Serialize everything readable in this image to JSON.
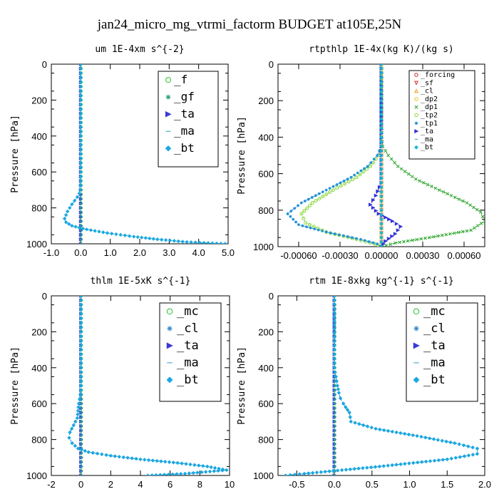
{
  "figure": {
    "title": "jan24_micro_mg_vtrmi_factorm  BUDGET at105E,25N"
  },
  "chart_data": [
    {
      "type": "line",
      "title": "um  1E-4xm s^{-2}",
      "xlabel": "",
      "ylabel": "Pressure [hPa]",
      "xlim": [
        -1.0,
        5.0
      ],
      "ylim": [
        1000,
        0
      ],
      "y_inverted": true,
      "xticks": [
        "-1.0",
        "0.0",
        "1.0",
        "2.0",
        "3.0",
        "4.0",
        "5.0"
      ],
      "xtick_values": [
        -1,
        0,
        1,
        2,
        3,
        4,
        5
      ],
      "yticks": [
        "0",
        "200",
        "400",
        "600",
        "800",
        "1000"
      ],
      "ytick_values": [
        0,
        200,
        400,
        600,
        800,
        1000
      ],
      "legend_position": "top-right",
      "legend_size": "large",
      "series": [
        {
          "name": "_f",
          "color": "#22c22c",
          "marker": "circle-open",
          "x": [
            0,
            0,
            0,
            0,
            0,
            0,
            0,
            0,
            0,
            0,
            0,
            0
          ],
          "y": [
            0,
            100,
            200,
            300,
            400,
            500,
            600,
            700,
            800,
            900,
            950,
            1000
          ]
        },
        {
          "name": "_gf",
          "color": "#1f9e6a",
          "marker": "star",
          "x": [
            0,
            0,
            0,
            0,
            0,
            0,
            0,
            0,
            0,
            0,
            0,
            0
          ],
          "y": [
            0,
            100,
            200,
            300,
            400,
            500,
            600,
            700,
            800,
            900,
            950,
            1000
          ]
        },
        {
          "name": "_ta",
          "color": "#3a3ad6",
          "marker": "triangle-right",
          "x": [
            0,
            0,
            0,
            0,
            0,
            0,
            0,
            0,
            0,
            0
          ],
          "y": [
            0,
            100,
            200,
            300,
            400,
            500,
            600,
            700,
            800,
            1000
          ]
        },
        {
          "name": "_ma",
          "color": "#2aa0c8",
          "marker": "dash",
          "x": [
            0,
            0,
            0,
            0,
            0,
            0,
            0,
            0,
            0,
            0
          ],
          "y": [
            0,
            100,
            200,
            300,
            400,
            500,
            600,
            700,
            800,
            1000
          ]
        },
        {
          "name": "_bt",
          "color": "#1aa8e0",
          "marker": "diamond",
          "x": [
            0,
            0,
            0,
            0,
            0,
            -0.02,
            -0.05,
            -0.12,
            -0.3,
            -0.45,
            -0.55,
            -0.5,
            -0.3,
            0.2,
            0.9,
            1.8,
            2.6,
            3.6,
            4.9
          ],
          "y": [
            0,
            200,
            400,
            600,
            650,
            700,
            720,
            740,
            780,
            820,
            860,
            880,
            900,
            920,
            940,
            960,
            975,
            990,
            1000
          ]
        }
      ]
    },
    {
      "type": "line",
      "title": "rtpthlp  1E-4x(kg K)/(kg s)",
      "xlabel": "",
      "ylabel": "Pressure [hPa]",
      "xlim": [
        -0.00075,
        0.00075
      ],
      "ylim": [
        1000,
        0
      ],
      "y_inverted": true,
      "xticks": [
        "-0.00060",
        "-0.00030",
        "0.00000",
        "0.00030",
        "0.00060"
      ],
      "xtick_values": [
        -0.0006,
        -0.0003,
        0.0,
        0.0003,
        0.0006
      ],
      "yticks": [
        "0",
        "200",
        "400",
        "600",
        "800",
        "1000"
      ],
      "ytick_values": [
        0,
        200,
        400,
        600,
        800,
        1000
      ],
      "legend_position": "top-right",
      "legend_size": "small",
      "series": [
        {
          "name": "_forcing",
          "color": "#d02020",
          "marker": "circle-open",
          "x": [
            0,
            0,
            0,
            0,
            0,
            0,
            0,
            0,
            0,
            0,
            0
          ],
          "y": [
            0,
            100,
            200,
            300,
            400,
            500,
            600,
            700,
            800,
            900,
            1000
          ]
        },
        {
          "name": "_sf",
          "color": "#e03030",
          "marker": "triangle-down",
          "x": [
            0,
            0,
            0,
            0,
            0,
            0,
            0,
            0,
            0,
            0,
            0
          ],
          "y": [
            0,
            100,
            200,
            300,
            400,
            500,
            600,
            700,
            800,
            900,
            1000
          ]
        },
        {
          "name": "_cl",
          "color": "#f0a020",
          "marker": "triangle-up",
          "x": [
            0,
            0,
            0,
            0,
            0,
            0,
            0,
            0,
            0,
            0,
            0
          ],
          "y": [
            0,
            100,
            200,
            300,
            400,
            500,
            600,
            700,
            800,
            900,
            1000
          ]
        },
        {
          "name": "_dp2",
          "color": "#e8c020",
          "marker": "circle-open",
          "x": [
            0,
            0,
            0,
            0,
            0,
            0,
            0,
            0,
            0,
            0,
            0
          ],
          "y": [
            0,
            100,
            200,
            300,
            400,
            500,
            600,
            700,
            800,
            900,
            1000
          ]
        },
        {
          "name": "_dp1",
          "color": "#32a832",
          "marker": "x",
          "x": [
            0,
            0,
            0,
            1e-05,
            5e-05,
            0.00012,
            0.00025,
            0.00045,
            0.00062,
            0.00072,
            0.00075,
            0.00065,
            0.00035,
            0.0001,
            0
          ],
          "y": [
            0,
            300,
            400,
            450,
            500,
            560,
            630,
            700,
            760,
            810,
            860,
            910,
            950,
            980,
            1000
          ]
        },
        {
          "name": "_tp2",
          "color": "#8ad840",
          "marker": "circle-open",
          "x": [
            0,
            0,
            0,
            -2e-05,
            -8e-05,
            -0.00018,
            -0.00035,
            -0.0005,
            -0.00058,
            -0.00055,
            -0.0004,
            -0.00018,
            -5e-05,
            0
          ],
          "y": [
            0,
            400,
            450,
            500,
            560,
            620,
            690,
            760,
            820,
            870,
            920,
            960,
            985,
            1000
          ]
        },
        {
          "name": "_tp1",
          "color": "#2090d8",
          "marker": "star",
          "x": [
            0,
            0,
            0,
            -3e-05,
            -0.0001,
            -0.00022,
            -0.0004,
            -0.00058,
            -0.00068,
            -0.0006,
            -0.0004,
            -0.00015,
            -3e-05,
            0
          ],
          "y": [
            0,
            400,
            450,
            500,
            560,
            620,
            690,
            760,
            820,
            880,
            920,
            960,
            985,
            1000
          ]
        },
        {
          "name": "_ta",
          "color": "#3030d8",
          "marker": "triangle-right",
          "x": [
            0,
            0,
            0,
            -4e-05,
            -8e-05,
            -2e-05,
            8e-05,
            0.00014,
            0.0001,
            3e-05,
            0
          ],
          "y": [
            0,
            500,
            650,
            720,
            770,
            820,
            860,
            890,
            930,
            970,
            1000
          ]
        },
        {
          "name": "_ma",
          "color": "#2aa0c8",
          "marker": "dash",
          "x": [
            0,
            0,
            0,
            0,
            0,
            0,
            0,
            0,
            0,
            0,
            0
          ],
          "y": [
            0,
            100,
            200,
            300,
            400,
            500,
            600,
            700,
            800,
            900,
            1000
          ]
        },
        {
          "name": "_bt",
          "color": "#10b8d8",
          "marker": "diamond",
          "x": [
            0,
            0,
            0,
            0,
            0,
            0,
            0,
            0,
            0,
            0,
            0
          ],
          "y": [
            0,
            100,
            200,
            300,
            400,
            500,
            600,
            700,
            800,
            900,
            1000
          ]
        }
      ]
    },
    {
      "type": "line",
      "title": "thlm  1E-5xK s^{-1}",
      "xlabel": "",
      "ylabel": "Pressure [hPa]",
      "xlim": [
        -2,
        10
      ],
      "ylim": [
        1000,
        0
      ],
      "y_inverted": true,
      "xticks": [
        "-2",
        "0",
        "2",
        "4",
        "6",
        "8",
        "10"
      ],
      "xtick_values": [
        -2,
        0,
        2,
        4,
        6,
        8,
        10
      ],
      "yticks": [
        "0",
        "200",
        "400",
        "600",
        "800",
        "1000"
      ],
      "ytick_values": [
        0,
        200,
        400,
        600,
        800,
        1000
      ],
      "legend_position": "top-right",
      "legend_size": "large",
      "series": [
        {
          "name": "_mc",
          "color": "#22c22c",
          "marker": "circle-open",
          "x": [
            0,
            0,
            0,
            0,
            0,
            0,
            0,
            0,
            0,
            0,
            0,
            0
          ],
          "y": [
            0,
            100,
            200,
            300,
            400,
            500,
            600,
            700,
            800,
            900,
            950,
            1000
          ]
        },
        {
          "name": "_cl",
          "color": "#2a7fc8",
          "marker": "star",
          "x": [
            0,
            0,
            0,
            0,
            -0.05,
            -0.15,
            -0.2,
            -0.25,
            -0.5,
            -0.75,
            -0.8,
            -0.6,
            -0.2,
            0.5,
            2,
            4,
            6.5,
            8.5,
            9.8,
            7,
            4.5
          ],
          "y": [
            0,
            200,
            400,
            500,
            550,
            600,
            640,
            680,
            720,
            760,
            790,
            820,
            850,
            870,
            890,
            910,
            930,
            950,
            970,
            990,
            1000
          ]
        },
        {
          "name": "_ta",
          "color": "#3a3ad6",
          "marker": "triangle-right",
          "x": [
            0,
            0,
            0,
            0,
            0,
            0,
            0,
            0,
            0,
            0,
            0,
            0
          ],
          "y": [
            0,
            100,
            200,
            300,
            400,
            500,
            600,
            700,
            800,
            900,
            950,
            1000
          ]
        },
        {
          "name": "_ma",
          "color": "#2aa0c8",
          "marker": "dash",
          "x": [
            0,
            0,
            0,
            0,
            0,
            0,
            0,
            0,
            0,
            0,
            0,
            0
          ],
          "y": [
            0,
            100,
            200,
            300,
            400,
            500,
            600,
            700,
            800,
            900,
            950,
            1000
          ]
        },
        {
          "name": "_bt",
          "color": "#1aa8e0",
          "marker": "diamond",
          "x": [
            0,
            0,
            0,
            0,
            -0.05,
            -0.15,
            -0.2,
            -0.25,
            -0.5,
            -0.75,
            -0.8,
            -0.6,
            -0.2,
            0.5,
            2,
            4,
            6.5,
            8.5,
            9.8,
            7,
            4.5
          ],
          "y": [
            0,
            200,
            400,
            500,
            550,
            600,
            640,
            680,
            720,
            760,
            790,
            820,
            850,
            870,
            890,
            910,
            930,
            950,
            970,
            990,
            1000
          ]
        }
      ]
    },
    {
      "type": "line",
      "title": "rtm  1E-8xkg kg^{-1} s^{-1}",
      "xlabel": "",
      "ylabel": "Pressure [hPa]",
      "xlim": [
        -0.75,
        2.0
      ],
      "ylim": [
        1000,
        0
      ],
      "y_inverted": true,
      "xticks": [
        "-0.5",
        "0.0",
        "0.5",
        "1.0",
        "1.5",
        "2.0"
      ],
      "xtick_values": [
        -0.5,
        0.0,
        0.5,
        1.0,
        1.5,
        2.0
      ],
      "yticks": [
        "0",
        "200",
        "400",
        "600",
        "800",
        "1000"
      ],
      "ytick_values": [
        0,
        200,
        400,
        600,
        800,
        1000
      ],
      "legend_position": "top-right",
      "legend_size": "large",
      "series": [
        {
          "name": "_mc",
          "color": "#22c22c",
          "marker": "circle-open",
          "x": [
            0,
            0,
            0,
            0,
            0,
            0,
            0,
            0,
            0,
            0,
            0,
            0
          ],
          "y": [
            0,
            100,
            200,
            300,
            400,
            500,
            600,
            700,
            800,
            900,
            950,
            1000
          ]
        },
        {
          "name": "_cl",
          "color": "#2a7fc8",
          "marker": "star",
          "x": [
            0,
            0,
            0,
            0.02,
            0.04,
            0.06,
            0.08,
            0.12,
            0.15,
            0.2,
            0.22,
            0.55,
            1.1,
            1.6,
            1.9,
            1.9,
            1.5,
            0.6,
            0.1,
            -0.4,
            -0.65
          ],
          "y": [
            0,
            300,
            400,
            450,
            500,
            540,
            570,
            600,
            620,
            650,
            700,
            740,
            780,
            820,
            850,
            880,
            910,
            950,
            970,
            990,
            1000
          ]
        },
        {
          "name": "_ta",
          "color": "#3a3ad6",
          "marker": "triangle-right",
          "x": [
            0,
            0,
            0,
            0,
            0,
            0,
            0,
            0,
            0,
            0,
            0,
            0
          ],
          "y": [
            0,
            100,
            200,
            300,
            400,
            500,
            600,
            700,
            800,
            900,
            950,
            1000
          ]
        },
        {
          "name": "_ma",
          "color": "#2aa0c8",
          "marker": "dash",
          "x": [
            0,
            0,
            0,
            0,
            0,
            0,
            0,
            0,
            0,
            0,
            0,
            0
          ],
          "y": [
            0,
            100,
            200,
            300,
            400,
            500,
            600,
            700,
            800,
            900,
            950,
            1000
          ]
        },
        {
          "name": "_bt",
          "color": "#1aa8e0",
          "marker": "diamond",
          "x": [
            0,
            0,
            0,
            0.02,
            0.04,
            0.06,
            0.08,
            0.12,
            0.15,
            0.2,
            0.22,
            0.55,
            1.1,
            1.6,
            1.9,
            1.9,
            1.5,
            0.6,
            0.1,
            -0.4,
            -0.65
          ],
          "y": [
            0,
            300,
            400,
            450,
            500,
            540,
            570,
            600,
            620,
            650,
            700,
            740,
            780,
            820,
            850,
            880,
            910,
            950,
            970,
            990,
            1000
          ]
        }
      ]
    }
  ]
}
